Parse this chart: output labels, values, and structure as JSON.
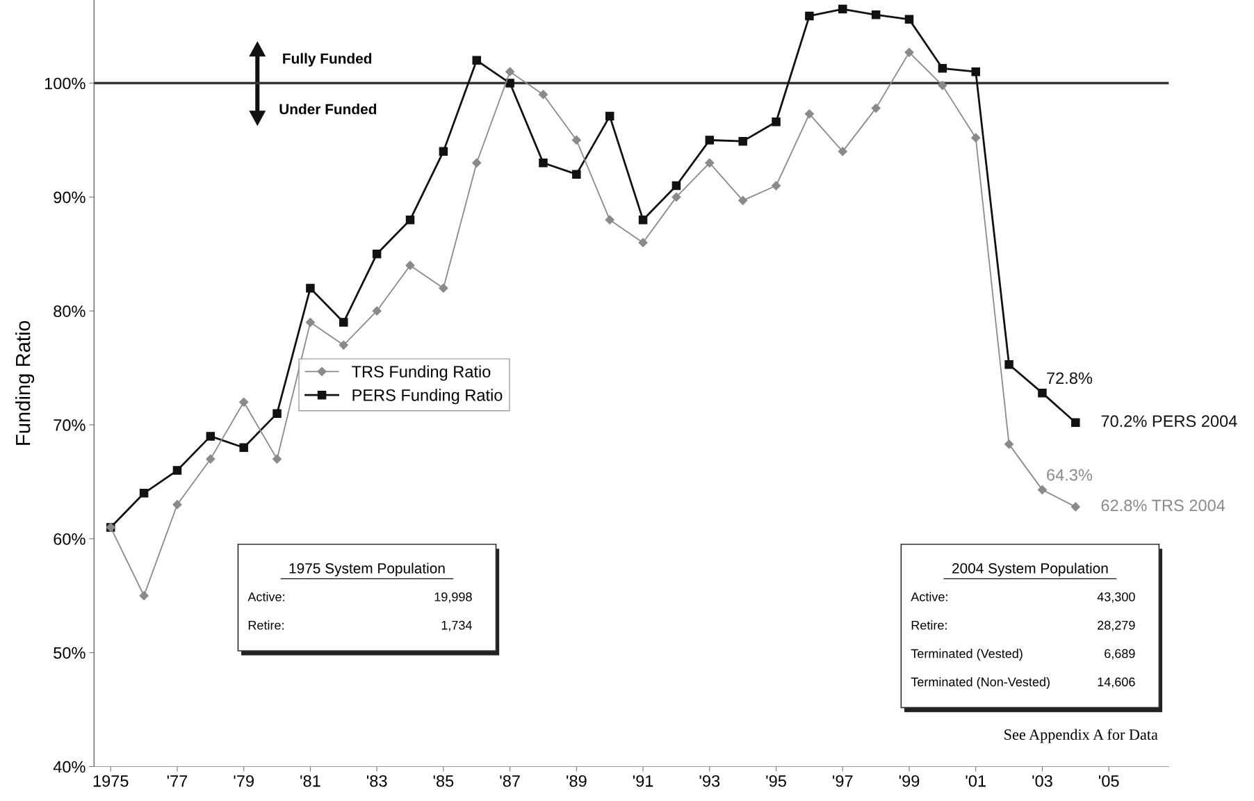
{
  "chart_data": {
    "type": "line",
    "ylabel": "Funding Ratio",
    "x": [
      1975,
      1976,
      1977,
      1978,
      1979,
      1980,
      1981,
      1982,
      1983,
      1984,
      1985,
      1986,
      1987,
      1988,
      1989,
      1990,
      1991,
      1992,
      1993,
      1994,
      1995,
      1996,
      1997,
      1998,
      1999,
      2000,
      2001,
      2002,
      2003,
      2004
    ],
    "series": [
      {
        "name": "TRS Funding Ratio",
        "color": "#8a8a8a",
        "marker": "diamond",
        "values": [
          61,
          55,
          63,
          67,
          72,
          67,
          79,
          77,
          80,
          84,
          82,
          93,
          101,
          99,
          95,
          88,
          86,
          90,
          93,
          89.7,
          91,
          97.3,
          94,
          97.8,
          102.7,
          99.8,
          95.2,
          68.3,
          64.3,
          62.8
        ],
        "value_labels": [
          null,
          null,
          null,
          null,
          null,
          null,
          null,
          null,
          null,
          null,
          null,
          null,
          null,
          null,
          null,
          null,
          null,
          null,
          null,
          null,
          null,
          null,
          null,
          null,
          null,
          null,
          null,
          null,
          "64.3%",
          "62.8% TRS 2004"
        ]
      },
      {
        "name": "PERS Funding Ratio",
        "color": "#111111",
        "marker": "square",
        "values": [
          61,
          64,
          66,
          69,
          68,
          71,
          82,
          79,
          85,
          88,
          94,
          102,
          100,
          93,
          92,
          97.1,
          88,
          91,
          95,
          94.9,
          96.6,
          105.9,
          106.5,
          106,
          105.6,
          101.3,
          101,
          75.3,
          72.8,
          70.2
        ],
        "value_labels": [
          null,
          null,
          null,
          null,
          null,
          null,
          null,
          null,
          null,
          null,
          null,
          null,
          null,
          null,
          null,
          null,
          null,
          null,
          null,
          null,
          null,
          null,
          null,
          null,
          null,
          null,
          null,
          null,
          "72.8%",
          "70.2% PERS 2004"
        ]
      }
    ],
    "xlim": [
      1974.5,
      2006.8
    ],
    "xticks": [
      {
        "value": 1975,
        "label": "1975"
      },
      {
        "value": 1977,
        "label": "'77"
      },
      {
        "value": 1979,
        "label": "'79"
      },
      {
        "value": 1981,
        "label": "'81"
      },
      {
        "value": 1983,
        "label": "'83"
      },
      {
        "value": 1985,
        "label": "'85"
      },
      {
        "value": 1987,
        "label": "'87"
      },
      {
        "value": 1989,
        "label": "'89"
      },
      {
        "value": 1991,
        "label": "'91"
      },
      {
        "value": 1993,
        "label": "'93"
      },
      {
        "value": 1995,
        "label": "'95"
      },
      {
        "value": 1997,
        "label": "'97"
      },
      {
        "value": 1999,
        "label": "'99"
      },
      {
        "value": 2001,
        "label": "'01"
      },
      {
        "value": 2003,
        "label": "'03"
      },
      {
        "value": 2005,
        "label": "'05"
      }
    ],
    "ylim": [
      40,
      107.3
    ],
    "yticks": [
      {
        "value": 40,
        "label": "40%"
      },
      {
        "value": 50,
        "label": "50%"
      },
      {
        "value": 60,
        "label": "60%"
      },
      {
        "value": 70,
        "label": "70%"
      },
      {
        "value": 80,
        "label": "80%"
      },
      {
        "value": 90,
        "label": "90%"
      },
      {
        "value": 100,
        "label": "100%"
      }
    ],
    "ref_lines": [
      {
        "axis": "y",
        "value": 100,
        "color": "#333333"
      }
    ],
    "legend": "center left",
    "grid": false,
    "annotations": [
      "Fully Funded",
      "Under Funded",
      "1975 System Population",
      "Active:",
      "19,998",
      "Retire:",
      "1,734",
      "2004 System Population",
      "Active:",
      "43,300",
      "Retire:",
      "28,279",
      "Terminated (Vested)",
      "6,689",
      "Terminated (Non-Vested)",
      "14,606",
      "See Appendix A for Data"
    ]
  }
}
